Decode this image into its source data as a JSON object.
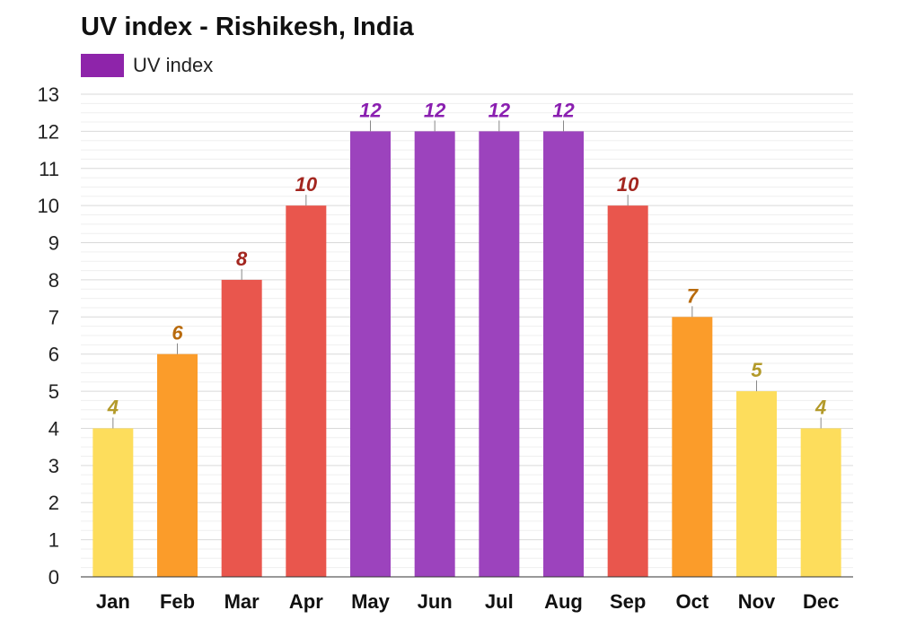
{
  "chart_data": {
    "type": "bar",
    "title": "UV index - Rishikesh, India",
    "legend": [
      {
        "label": "UV index",
        "color": "#8e24aa"
      }
    ],
    "legend_position": "top-left",
    "categories": [
      "Jan",
      "Feb",
      "Mar",
      "Apr",
      "May",
      "Jun",
      "Jul",
      "Aug",
      "Sep",
      "Oct",
      "Nov",
      "Dec"
    ],
    "series": [
      {
        "name": "UV index",
        "values": [
          4,
          6,
          8,
          10,
          12,
          12,
          12,
          12,
          10,
          7,
          5,
          4
        ]
      }
    ],
    "yticks": [
      "0",
      "1",
      "2",
      "3",
      "4",
      "5",
      "6",
      "7",
      "8",
      "9",
      "10",
      "11",
      "12",
      "13"
    ],
    "ylim": [
      0,
      13
    ],
    "grid": true,
    "colors": {
      "moderate": {
        "bar": "#fddd5c",
        "label": "#b39a2a"
      },
      "high": {
        "bar": "#fb9c2a",
        "label": "#b86a0c"
      },
      "very_high": {
        "bar": "#e9564d",
        "label": "#a3261f"
      },
      "extreme": {
        "bar": "#9c43bd",
        "label": "#8a1fb0"
      }
    }
  }
}
